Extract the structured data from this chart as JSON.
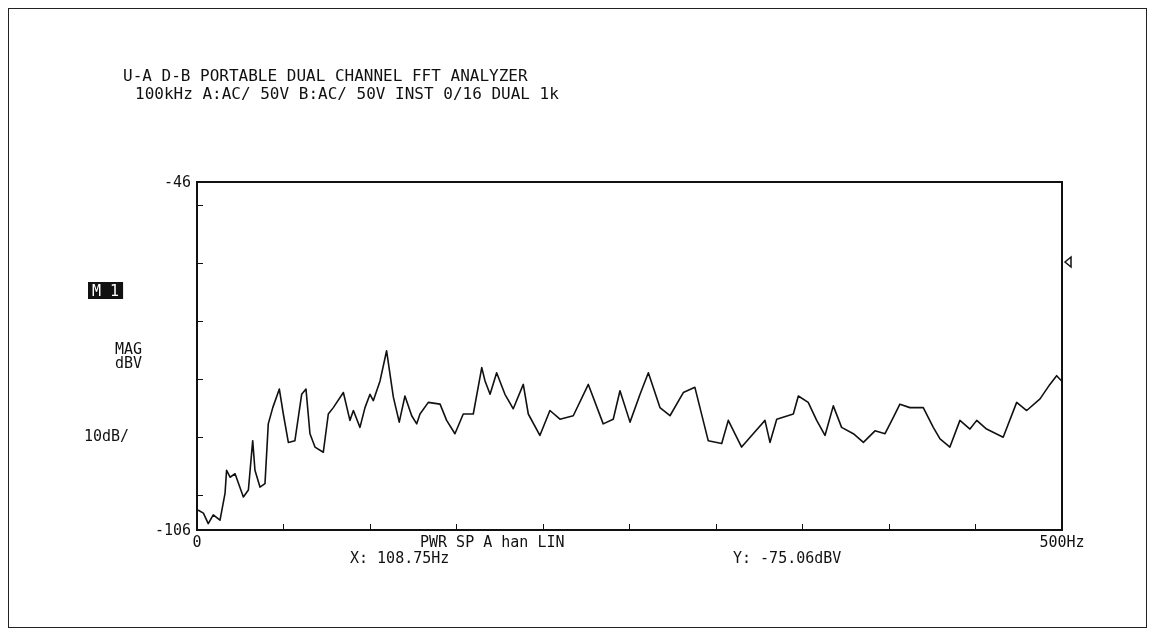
{
  "chart_data": {
    "type": "line",
    "title": "U-A D-B PORTABLE DUAL CHANNEL FFT ANALYZER",
    "subtitle": "100kHz A:AC/ 50V B:AC/ 50V INST 0/16 DUAL 1k",
    "ylabel": "MAG\ndBV",
    "annotations": [
      "M 1",
      "10dB/",
      "PWR SP A han LIN",
      "X: 108.75Hz",
      "Y: -75.06dBV"
    ],
    "x": [
      0.8,
      3.7,
      6.5,
      9.4,
      13.3,
      16.2,
      17.1,
      19.1,
      22,
      26.8,
      29.7,
      32.2,
      33.5,
      36.4,
      39.3,
      41.2,
      43.8,
      47.6,
      49.9,
      52.8,
      56.6,
      60.5,
      63,
      65.3,
      68.2,
      73,
      75.9,
      78.8,
      84.6,
      88.4,
      90.4,
      94.2,
      97.1,
      100,
      101.9,
      105.8,
      109.6,
      113.5,
      116.9,
      120.2,
      124.1,
      127,
      128.9,
      133.7,
      140.5,
      144.3,
      149.1,
      153.9,
      159.7,
      164.6,
      166.5,
      169.4,
      173.2,
      178,
      182.8,
      188.6,
      191.5,
      198.2,
      204,
      209.8,
      217.5,
      226.2,
      234.8,
      240.6,
      244.5,
      250.3,
      256.1,
      260.9,
      267.6,
      273.4,
      281.1,
      287.8,
      295.5,
      303.3,
      307.1,
      314.8,
      321.5,
      328.3,
      331.2,
      335.1,
      344.7,
      347.6,
      353.3,
      358.2,
      363,
      367.8,
      372.6,
      379.4,
      385.2,
      391.9,
      397.7,
      402.5,
      406.3,
      412.1,
      419.8,
      425.6,
      429.5,
      435.2,
      441,
      446.8,
      450.7,
      456.4,
      466,
      473.8,
      479.6,
      487.3,
      493,
      496.9,
      499.8
    ],
    "series": [
      {
        "color": "#111111",
        "values": [
          -102.6,
          -103.1,
          -104.9,
          -103.4,
          -104.3,
          -99.7,
          -95.7,
          -96.9,
          -96.3,
          -100.3,
          -99.1,
          -90.6,
          -95.7,
          -98.6,
          -98,
          -87.7,
          -84.9,
          -81.7,
          -86,
          -90.9,
          -90.6,
          -82.6,
          -81.7,
          -89.4,
          -91.7,
          -92.6,
          -86,
          -84.9,
          -82.3,
          -87.1,
          -85.4,
          -88.3,
          -84.9,
          -82.6,
          -83.7,
          -80.3,
          -75.1,
          -83.1,
          -87.4,
          -82.9,
          -86.3,
          -87.7,
          -86,
          -84,
          -84.3,
          -87.1,
          -89.4,
          -86,
          -86,
          -78,
          -80.3,
          -82.6,
          -78.9,
          -82.6,
          -85.1,
          -80.9,
          -86,
          -89.7,
          -85.4,
          -86.9,
          -86.3,
          -80.9,
          -87.7,
          -86.9,
          -82,
          -87.4,
          -82.6,
          -78.9,
          -84.9,
          -86.3,
          -82.3,
          -81.4,
          -90.6,
          -91.1,
          -87.1,
          -91.7,
          -89.4,
          -87.1,
          -90.9,
          -86.9,
          -86,
          -82.9,
          -84,
          -87.1,
          -89.7,
          -84.6,
          -88.3,
          -89.4,
          -90.9,
          -88.9,
          -89.4,
          -86.6,
          -84.3,
          -84.9,
          -84.9,
          -88.3,
          -90.3,
          -91.7,
          -87.1,
          -88.6,
          -87.1,
          -88.6,
          -90,
          -84,
          -85.4,
          -83.4,
          -80.9,
          -79.4,
          -80.3
        ]
      }
    ],
    "xlim": [
      0,
      500
    ],
    "xticks": [
      {
        "value": 0,
        "label": "0"
      },
      {
        "value": 50,
        "label": null
      },
      {
        "value": 100,
        "label": null
      },
      {
        "value": 150,
        "label": null
      },
      {
        "value": 200,
        "label": null
      },
      {
        "value": 250,
        "label": null
      },
      {
        "value": 300,
        "label": null
      },
      {
        "value": 350,
        "label": null
      },
      {
        "value": 400,
        "label": null
      },
      {
        "value": 450,
        "label": null
      },
      {
        "value": 500,
        "label": "500Hz"
      }
    ],
    "ylim": [
      -106,
      -46
    ],
    "yticks": [
      -106,
      {
        "value": -100,
        "label": null
      },
      {
        "value": -90,
        "label": null
      },
      {
        "value": -80,
        "label": null
      },
      {
        "value": -70,
        "label": null
      },
      {
        "value": -60,
        "label": null
      },
      {
        "value": -50,
        "label": null
      },
      -46
    ],
    "grid": false,
    "marker": "none",
    "line_style": "solid"
  }
}
